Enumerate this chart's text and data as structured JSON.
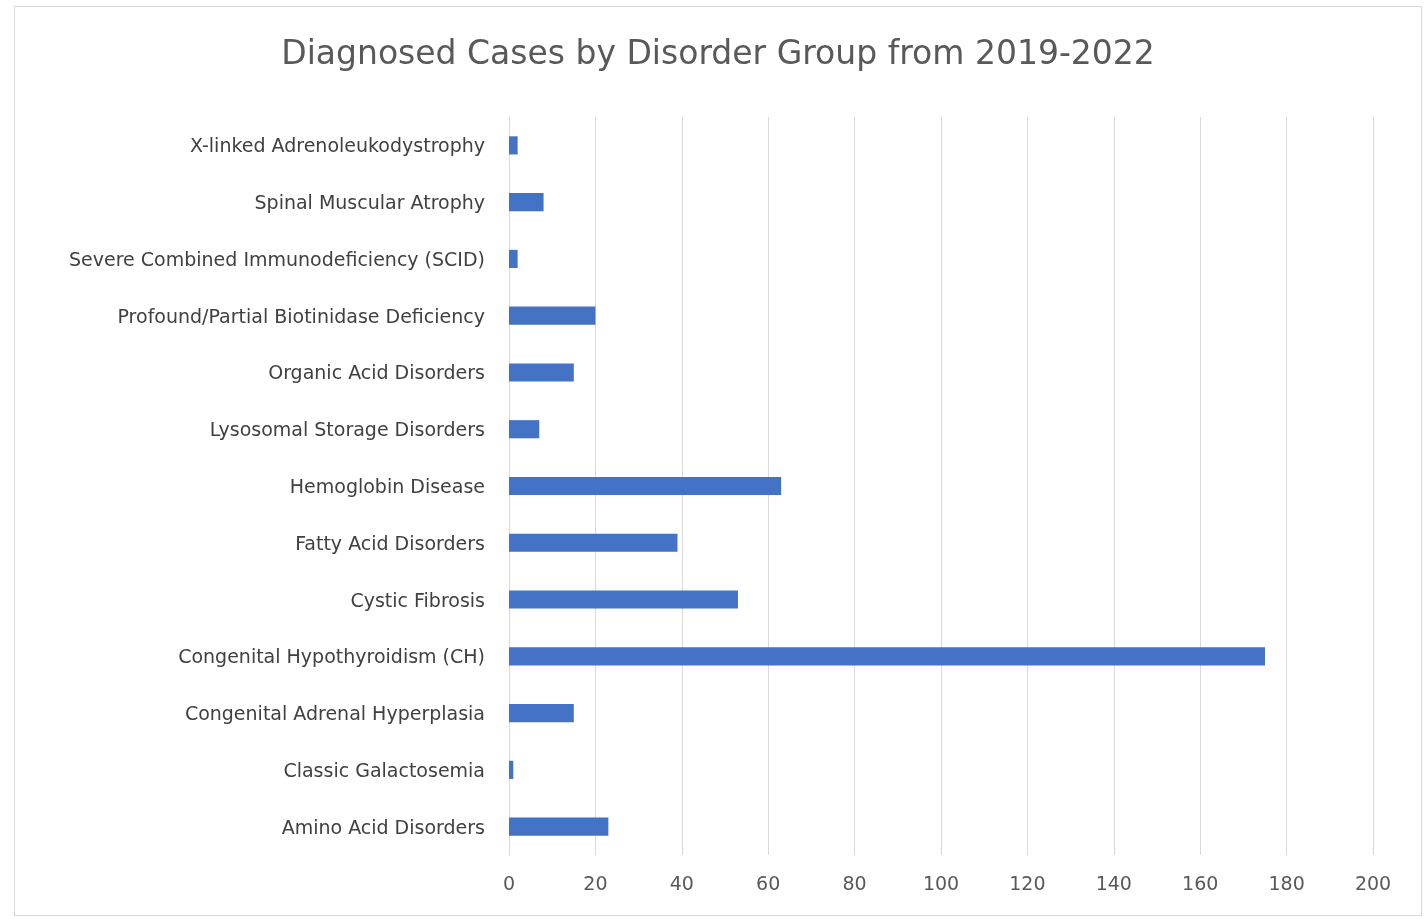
{
  "chart_data": {
    "type": "bar",
    "orientation": "horizontal",
    "title": "Diagnosed Cases by Disorder Group from 2019-2022",
    "categories": [
      "X-linked Adrenoleukodystrophy",
      "Spinal Muscular Atrophy",
      "Severe Combined Immunodeficiency (SCID)",
      "Profound/Partial Biotinidase Deficiency",
      "Organic Acid Disorders",
      "Lysosomal Storage Disorders",
      "Hemoglobin Disease",
      "Fatty Acid Disorders",
      "Cystic Fibrosis",
      "Congenital Hypothyroidism (CH)",
      "Congenital Adrenal Hyperplasia",
      "Classic Galactosemia",
      "Amino Acid Disorders"
    ],
    "values": [
      2,
      8,
      2,
      20,
      15,
      7,
      63,
      39,
      53,
      175,
      15,
      1,
      23
    ],
    "color": "#4472c4",
    "xlim": [
      0,
      200
    ],
    "xticks": [
      0,
      20,
      40,
      60,
      80,
      100,
      120,
      140,
      160,
      180,
      200
    ],
    "grid": "x"
  }
}
